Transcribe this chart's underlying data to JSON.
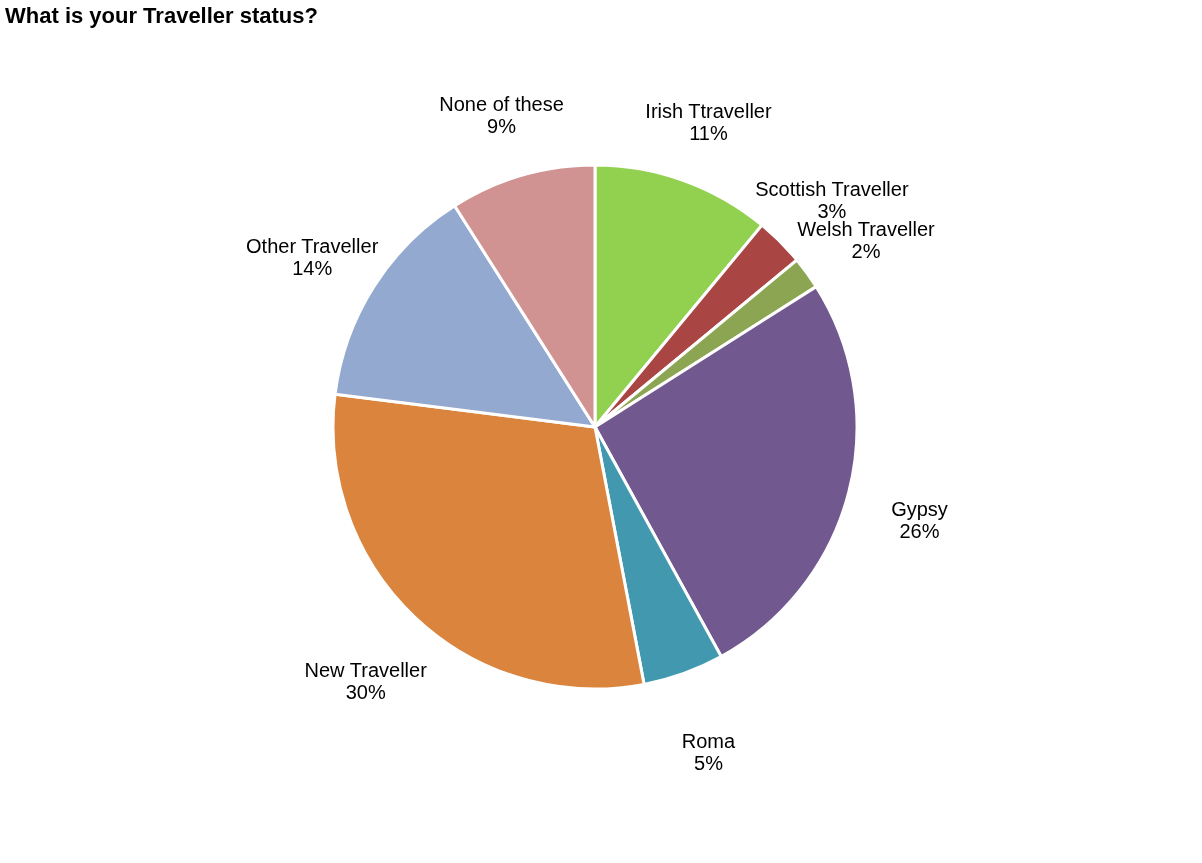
{
  "chart_data": {
    "type": "pie",
    "title": "What is your Traveller status?",
    "categories": [
      "Irish Ttraveller",
      "Scottish Traveller",
      "Welsh Traveller",
      "Gypsy",
      "Roma",
      "New Traveller",
      "Other Traveller",
      "None of these"
    ],
    "values": [
      11,
      3,
      2,
      26,
      5,
      30,
      14,
      9
    ],
    "value_labels": [
      "11%",
      "3%",
      "2%",
      "26%",
      "5%",
      "30%",
      "14%",
      "9%"
    ],
    "colors": [
      "#92d050",
      "#a94643",
      "#8ba552",
      "#71588f",
      "#4198af",
      "#db843d",
      "#93a9cf",
      "#d19392"
    ],
    "legend": false
  }
}
